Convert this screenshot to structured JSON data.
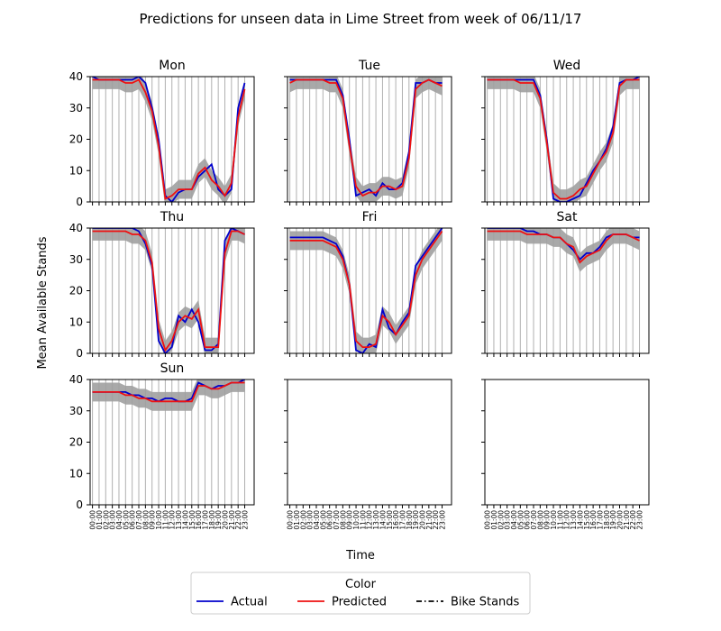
{
  "title": "Predictions for unseen data in Lime Street from week of 06/11/17",
  "xlabel": "Time",
  "ylabel": "Mean Available Stands",
  "legend": {
    "title": "Color",
    "entries": [
      {
        "label": "Actual",
        "color": "#0000cc",
        "dash": "solid"
      },
      {
        "label": "Predicted",
        "color": "#ee1111",
        "dash": "solid"
      },
      {
        "label": "Bike Stands",
        "color": "#000000",
        "dash": "dashdot"
      }
    ]
  },
  "colors": {
    "actual": "#0000cc",
    "predicted": "#ee1111",
    "band": "#a0a0a0",
    "grid": "#b0b0b0"
  },
  "chart_data": {
    "type": "line",
    "ylim": [
      0,
      40
    ],
    "yticks": [
      0,
      10,
      20,
      30,
      40
    ],
    "grid": true,
    "x": [
      "00:00",
      "01:00",
      "02:00",
      "03:00",
      "04:00",
      "05:00",
      "06:00",
      "07:00",
      "08:00",
      "09:00",
      "10:00",
      "11:00",
      "12:00",
      "13:00",
      "14:00",
      "15:00",
      "16:00",
      "17:00",
      "18:00",
      "19:00",
      "20:00",
      "21:00",
      "22:00",
      "23:00"
    ],
    "panels": [
      {
        "title": "Mon",
        "actual": [
          40,
          39,
          39,
          39,
          39,
          39,
          39,
          40,
          38,
          30,
          20,
          2,
          0,
          3,
          4,
          4,
          8,
          10,
          12,
          4,
          2,
          4,
          30,
          38
        ],
        "predicted": [
          39,
          39,
          39,
          39,
          39,
          38,
          38,
          39,
          35,
          29,
          18,
          1,
          2,
          4,
          4,
          4,
          9,
          11,
          7,
          5,
          2,
          6,
          27,
          36
        ],
        "band_width": 3
      },
      {
        "title": "Tue",
        "actual": [
          39,
          39,
          39,
          39,
          39,
          39,
          39,
          39,
          34,
          20,
          2,
          3,
          4,
          2,
          6,
          4,
          4,
          6,
          16,
          38,
          38,
          39,
          38,
          38
        ],
        "predicted": [
          38,
          39,
          39,
          39,
          39,
          39,
          38,
          38,
          33,
          18,
          5,
          2,
          3,
          3,
          5,
          5,
          4,
          5,
          14,
          36,
          38,
          39,
          38,
          37
        ],
        "band_width": 3
      },
      {
        "title": "Wed",
        "actual": [
          39,
          39,
          39,
          39,
          39,
          39,
          39,
          39,
          34,
          20,
          1,
          0,
          0,
          1,
          2,
          6,
          10,
          13,
          17,
          24,
          38,
          39,
          39,
          40
        ],
        "predicted": [
          39,
          39,
          39,
          39,
          39,
          38,
          38,
          38,
          33,
          19,
          3,
          1,
          1,
          2,
          4,
          5,
          9,
          13,
          16,
          22,
          37,
          39,
          39,
          39
        ],
        "band_width": 3
      },
      {
        "title": "Thu",
        "actual": [
          40,
          40,
          40,
          40,
          40,
          40,
          40,
          39,
          35,
          28,
          4,
          0,
          2,
          12,
          10,
          14,
          10,
          1,
          1,
          3,
          36,
          40,
          39,
          38
        ],
        "predicted": [
          39,
          39,
          39,
          39,
          39,
          39,
          38,
          38,
          36,
          29,
          8,
          1,
          4,
          10,
          12,
          11,
          14,
          2,
          2,
          2,
          32,
          39,
          39,
          38
        ],
        "band_width": 3
      },
      {
        "title": "Fri",
        "actual": [
          37,
          37,
          37,
          37,
          37,
          37,
          36,
          35,
          31,
          22,
          1,
          0,
          3,
          2,
          14,
          8,
          6,
          10,
          13,
          28,
          31,
          34,
          37,
          40
        ],
        "predicted": [
          36,
          36,
          36,
          36,
          36,
          36,
          35,
          34,
          30,
          22,
          4,
          2,
          2,
          3,
          12,
          10,
          6,
          9,
          12,
          25,
          30,
          33,
          36,
          39
        ],
        "band_width": 3
      },
      {
        "title": "Sat",
        "actual": [
          40,
          40,
          40,
          40,
          40,
          40,
          39,
          39,
          38,
          38,
          37,
          37,
          35,
          33,
          30,
          32,
          32,
          34,
          37,
          38,
          38,
          38,
          37,
          37
        ],
        "predicted": [
          39,
          39,
          39,
          39,
          39,
          39,
          38,
          38,
          38,
          38,
          37,
          37,
          35,
          34,
          29,
          31,
          32,
          33,
          36,
          38,
          38,
          38,
          37,
          36
        ],
        "band_width": 3
      },
      {
        "title": "Sun",
        "actual": [
          36,
          36,
          36,
          36,
          36,
          36,
          35,
          35,
          34,
          34,
          33,
          34,
          34,
          33,
          33,
          34,
          39,
          38,
          37,
          38,
          38,
          39,
          39,
          40
        ],
        "predicted": [
          36,
          36,
          36,
          36,
          36,
          35,
          35,
          34,
          34,
          33,
          33,
          33,
          33,
          33,
          33,
          33,
          38,
          38,
          37,
          37,
          38,
          39,
          39,
          39
        ],
        "band_width": 3
      },
      {
        "title": "",
        "actual": [],
        "predicted": [],
        "band_width": 0
      },
      {
        "title": "",
        "actual": [],
        "predicted": [],
        "band_width": 0
      }
    ]
  }
}
